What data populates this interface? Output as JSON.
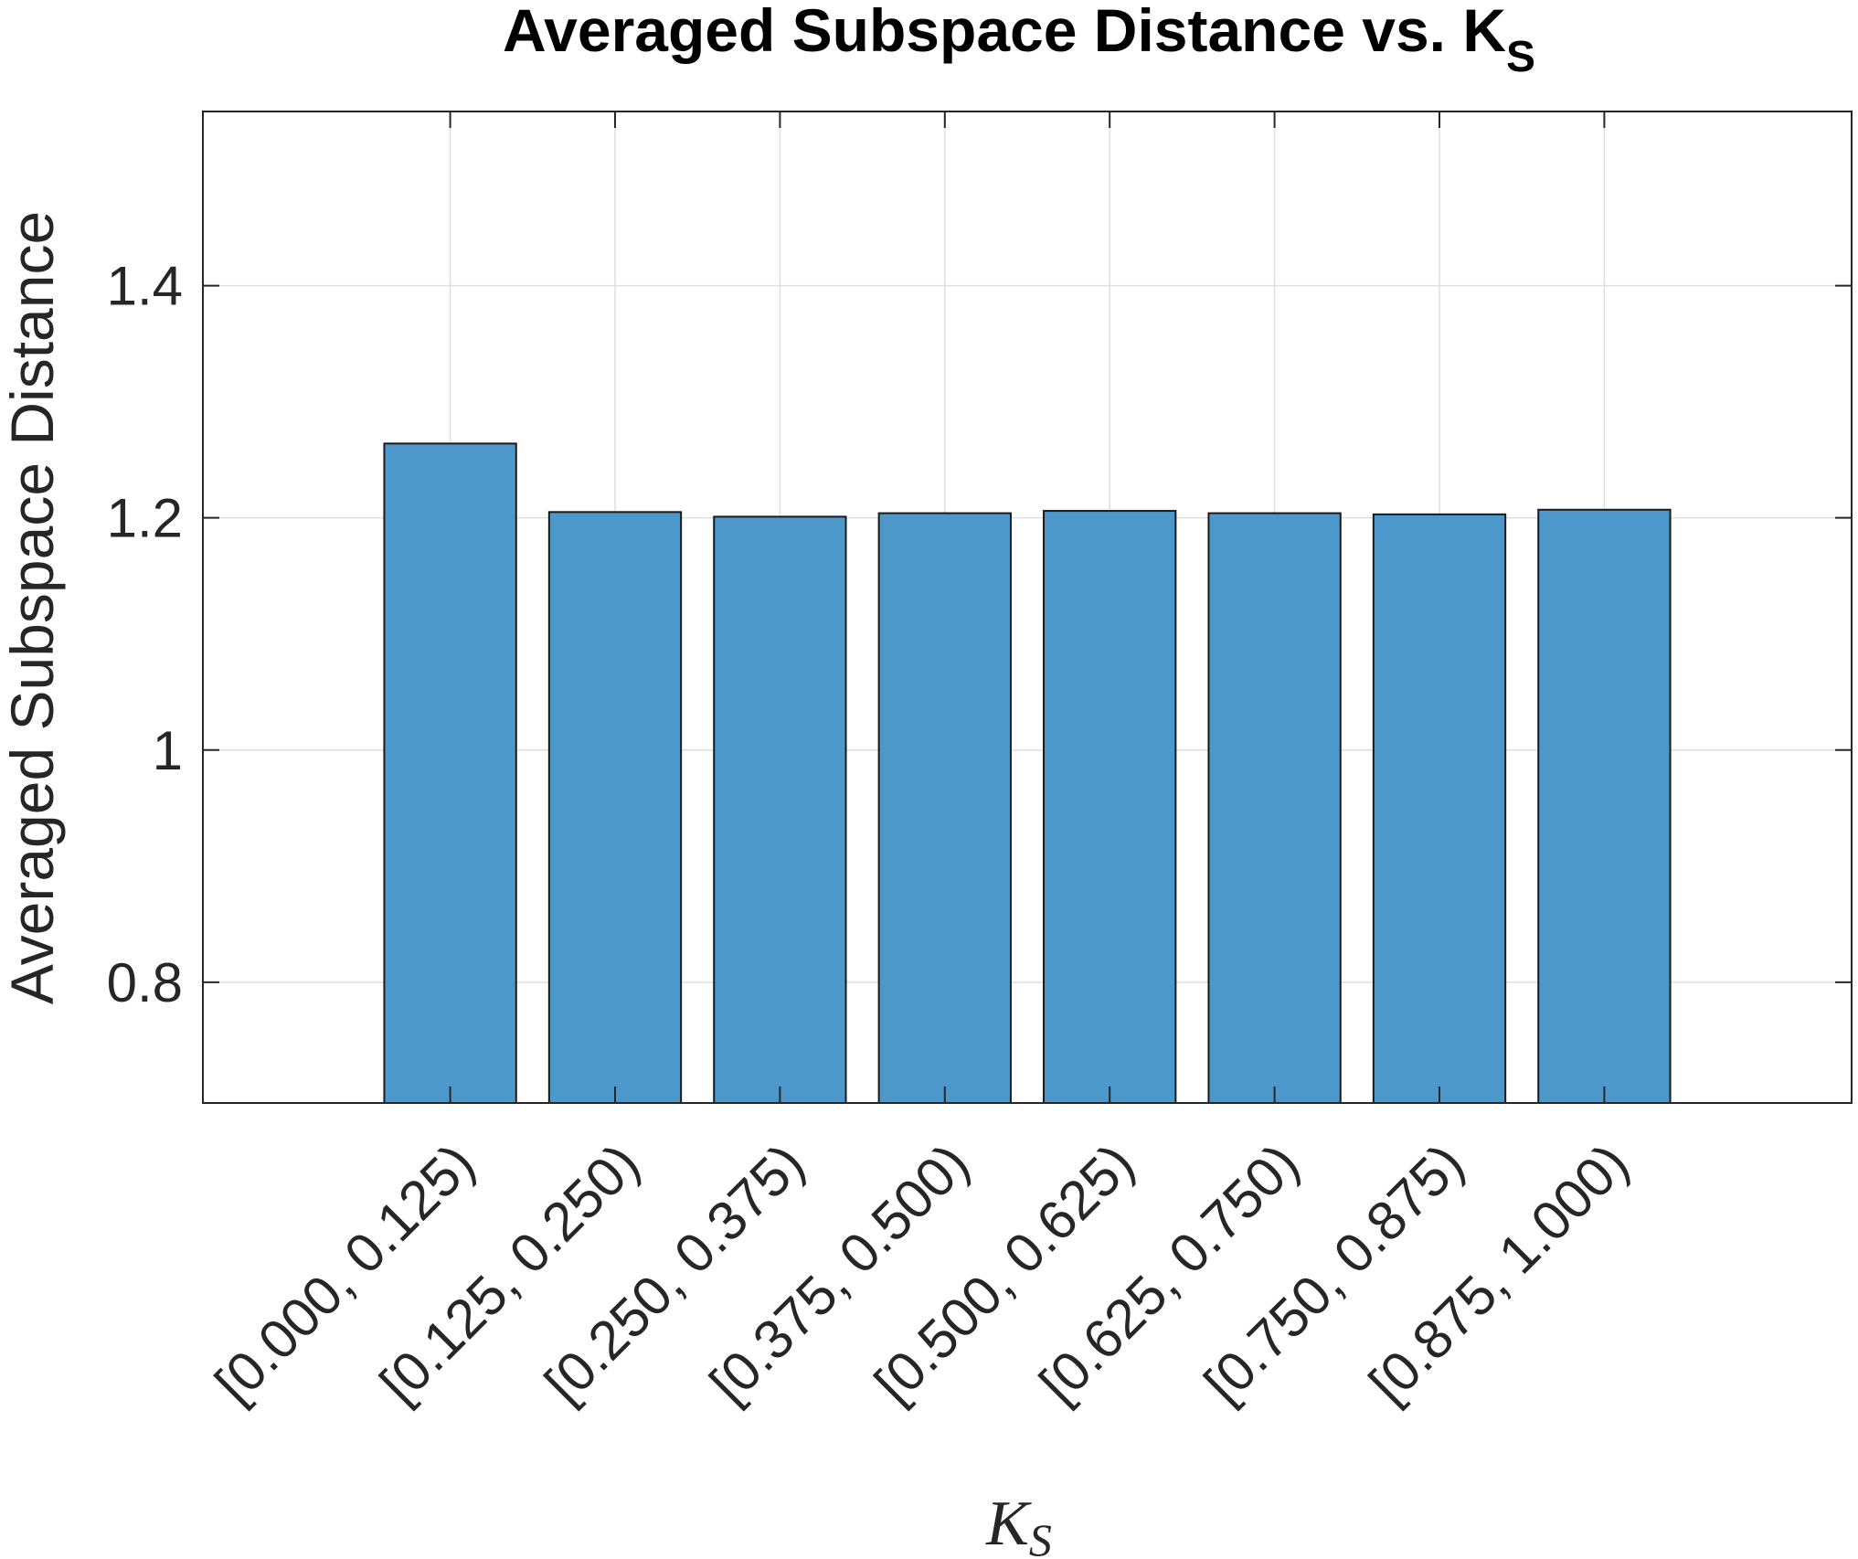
{
  "chart_data": {
    "type": "bar",
    "title_main": "Averaged Subspace Distance vs. K",
    "title_subscript": "S",
    "ylabel": "Averaged Subspace Distance",
    "xlabel_main": "K",
    "xlabel_subscript": "S",
    "categories": [
      "[0.000, 0.125)",
      "[0.125, 0.250)",
      "[0.250, 0.375)",
      "[0.375, 0.500)",
      "[0.500, 0.625)",
      "[0.625, 0.750)",
      "[0.750, 0.875)",
      "[0.875, 1.000)"
    ],
    "values": [
      1.264,
      1.205,
      1.201,
      1.204,
      1.206,
      1.204,
      1.203,
      1.207
    ],
    "ylim": [
      0.696,
      1.55
    ],
    "yticks": [
      0.8,
      1,
      1.2,
      1.4
    ],
    "ytick_labels": [
      "0.8",
      "1",
      "1.2",
      "1.4"
    ],
    "xlim": [
      -0.5,
      9.5
    ],
    "grid": true,
    "bar_color": "#4d98cb",
    "edge_color": "#1a1a1a"
  }
}
